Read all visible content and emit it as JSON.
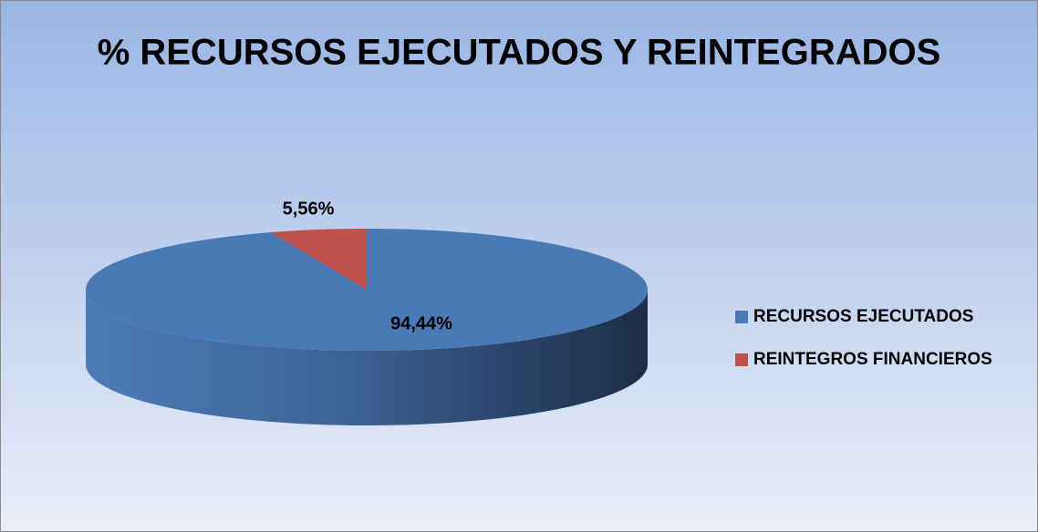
{
  "chart_data": {
    "type": "pie",
    "title": "% RECURSOS EJECUTADOS Y REINTEGRADOS",
    "categories": [
      "RECURSOS EJECUTADOS",
      "REINTEGROS FINANCIEROS"
    ],
    "values": [
      94.44,
      5.56
    ],
    "value_labels": [
      "94,44%",
      "5,56%"
    ],
    "colors": [
      "#4a7ab5",
      "#c0504d"
    ],
    "legend": "right"
  }
}
